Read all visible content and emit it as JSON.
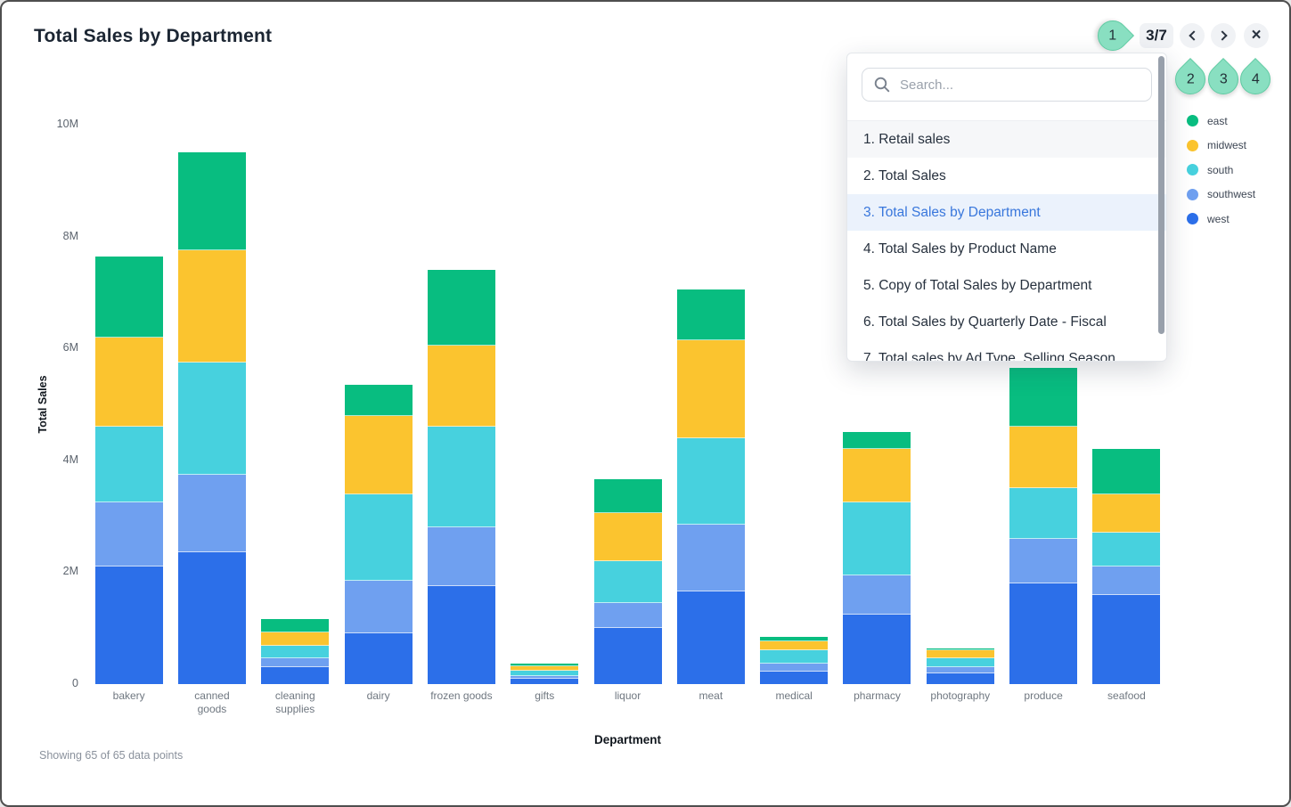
{
  "chart_data": {
    "type": "bar",
    "stacked": true,
    "title": "Total Sales by Department",
    "xlabel": "Department",
    "ylabel": "Total Sales",
    "units": "M",
    "ylim_millions": [
      0,
      10
    ],
    "yticks": [
      {
        "label": "10M",
        "value": 10
      },
      {
        "label": "8M",
        "value": 8
      },
      {
        "label": "6M",
        "value": 6
      },
      {
        "label": "4M",
        "value": 4
      },
      {
        "label": "2M",
        "value": 2
      },
      {
        "label": "0",
        "value": 0
      }
    ],
    "categories": [
      "bakery",
      "canned goods",
      "cleaning supplies",
      "dairy",
      "frozen goods",
      "gifts",
      "liquor",
      "meat",
      "medical",
      "pharmacy",
      "photography",
      "produce",
      "seafood"
    ],
    "series": [
      {
        "name": "west",
        "color": "#2c6fe9",
        "values_millions": [
          2.1,
          2.35,
          0.3,
          0.9,
          1.75,
          0.09,
          1.0,
          1.65,
          0.23,
          1.25,
          0.19,
          1.8,
          1.6
        ]
      },
      {
        "name": "southwest",
        "color": "#6fa0f0",
        "values_millions": [
          1.15,
          1.4,
          0.16,
          0.95,
          1.05,
          0.06,
          0.45,
          1.2,
          0.14,
          0.7,
          0.11,
          0.8,
          0.5
        ]
      },
      {
        "name": "south",
        "color": "#47d1de",
        "values_millions": [
          1.35,
          2.0,
          0.22,
          1.55,
          1.8,
          0.09,
          0.75,
          1.55,
          0.23,
          1.3,
          0.16,
          0.9,
          0.6
        ]
      },
      {
        "name": "midwest",
        "color": "#fbc42f",
        "values_millions": [
          1.6,
          2.0,
          0.24,
          1.4,
          1.45,
          0.08,
          0.85,
          1.75,
          0.16,
          0.95,
          0.14,
          1.1,
          0.7
        ]
      },
      {
        "name": "east",
        "color": "#08bd80",
        "values_millions": [
          1.45,
          1.75,
          0.24,
          0.55,
          1.35,
          0.05,
          0.62,
          0.9,
          0.09,
          0.3,
          0.04,
          1.05,
          0.8
        ]
      }
    ],
    "legend_position": "right",
    "grid": false,
    "footnote": "Showing 65 of 65 data points"
  },
  "legend": {
    "entries": [
      {
        "label": "east",
        "color": "#08bd80"
      },
      {
        "label": "midwest",
        "color": "#fbc42f"
      },
      {
        "label": "south",
        "color": "#47d1de"
      },
      {
        "label": "southwest",
        "color": "#6fa0f0"
      },
      {
        "label": "west",
        "color": "#2c6fe9"
      }
    ]
  },
  "controls": {
    "page_indicator": "3/7",
    "close_glyph": "×"
  },
  "dropdown": {
    "search_placeholder": "Search...",
    "items": [
      {
        "label": "1. Retail sales",
        "state": "hover"
      },
      {
        "label": "2. Total Sales",
        "state": "normal"
      },
      {
        "label": "3. Total Sales by Department",
        "state": "selected"
      },
      {
        "label": "4. Total Sales by Product Name",
        "state": "normal"
      },
      {
        "label": "5. Copy of Total Sales by Department",
        "state": "normal"
      },
      {
        "label": "6. Total Sales by Quarterly Date - Fiscal",
        "state": "normal"
      },
      {
        "label": "7. Total sales by Ad Type, Selling Season",
        "state": "normal"
      }
    ]
  },
  "annotations": {
    "marker_color": "#89dfc1",
    "markers": [
      {
        "label": "1"
      },
      {
        "label": "2"
      },
      {
        "label": "3"
      },
      {
        "label": "4"
      }
    ]
  }
}
